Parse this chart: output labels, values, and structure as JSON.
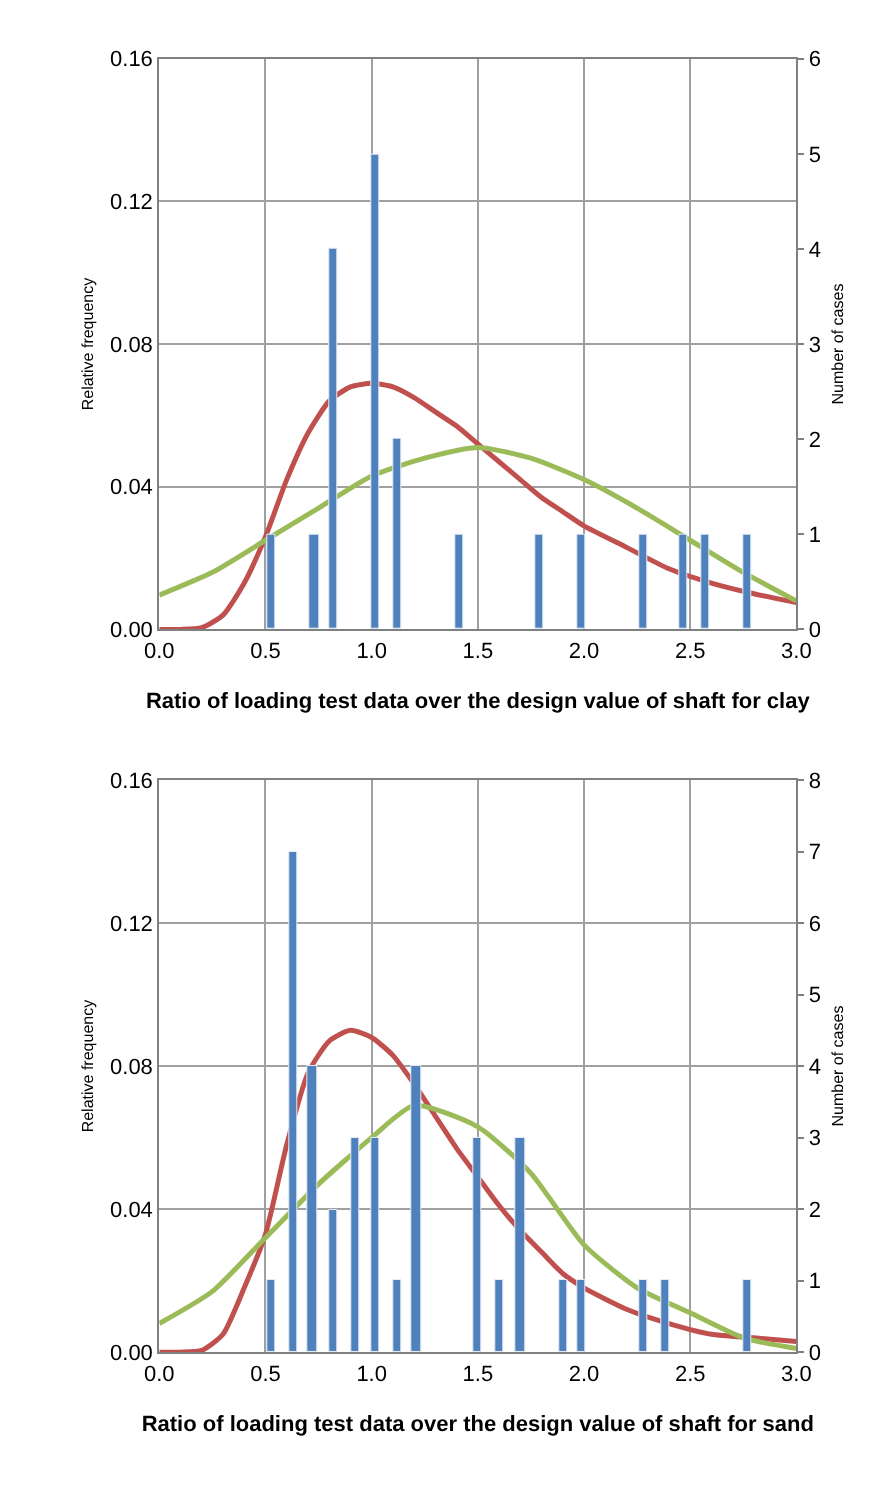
{
  "chart_data": [
    {
      "type": "bar",
      "xlabel": "Ratio of loading test data over the design value of shaft for clay",
      "ylabel": "Relative frequency",
      "y2label": "Number of cases",
      "xlim": [
        0.0,
        3.0
      ],
      "xticks": [
        {
          "value": 0,
          "label": "0.0"
        },
        {
          "value": 0.5,
          "label": "0.5"
        },
        {
          "value": 1,
          "label": "1.0"
        },
        {
          "value": 1.5,
          "label": "1.5"
        },
        {
          "value": 2,
          "label": "2.0"
        },
        {
          "value": 2.5,
          "label": "2.5"
        },
        {
          "value": 3,
          "label": "3.0"
        }
      ],
      "ylim": [
        0,
        0.16
      ],
      "yticks": [
        {
          "value": 0,
          "label": "0.00"
        },
        {
          "value": 0.04,
          "label": "0.04"
        },
        {
          "value": 0.08,
          "label": "0.08"
        },
        {
          "value": 0.12,
          "label": "0.12"
        },
        {
          "value": 0.16,
          "label": "0.16"
        }
      ],
      "y2lim": [
        0,
        6
      ],
      "y2ticks": [
        0,
        1,
        2,
        3,
        4,
        5,
        6
      ],
      "grid": true,
      "series": [
        {
          "axis": "y2",
          "color": "#4f81bd",
          "x": [
            0.53,
            0.73,
            0.82,
            1.02,
            1.12,
            1.41,
            1.79,
            1.99,
            2.28,
            2.47,
            2.57,
            2.77
          ],
          "values": [
            1,
            1,
            4,
            5,
            2,
            1,
            1,
            1,
            1,
            1,
            1,
            1
          ]
        },
        {
          "type": "line",
          "color": "#c0504d",
          "x": [
            0,
            0.1,
            0.2,
            0.3,
            0.4,
            0.5,
            0.6,
            0.7,
            0.8,
            0.9,
            1.0,
            1.1,
            1.2,
            1.3,
            1.4,
            1.5,
            1.6,
            1.7,
            1.8,
            1.9,
            2.0,
            2.2,
            2.4,
            2.6,
            2.8,
            3.0
          ],
          "values": [
            0,
            0,
            0.0005,
            0.004,
            0.013,
            0.026,
            0.042,
            0.055,
            0.064,
            0.068,
            0.069,
            0.068,
            0.065,
            0.061,
            0.057,
            0.052,
            0.047,
            0.042,
            0.037,
            0.033,
            0.029,
            0.023,
            0.017,
            0.013,
            0.01,
            0.0075
          ]
        },
        {
          "type": "line",
          "color": "#9bbb59",
          "x": [
            0,
            0.25,
            0.5,
            0.75,
            1.0,
            1.25,
            1.5,
            1.75,
            2.0,
            2.25,
            2.5,
            2.75,
            3.0
          ],
          "values": [
            0.0096,
            0.016,
            0.025,
            0.034,
            0.043,
            0.048,
            0.051,
            0.048,
            0.042,
            0.034,
            0.025,
            0.016,
            0.008
          ]
        }
      ]
    },
    {
      "type": "bar",
      "xlabel": "Ratio of loading test data over the design value of shaft for sand",
      "ylabel": "Relative frequency",
      "y2label": "Number of cases",
      "xlim": [
        0.0,
        3.0
      ],
      "xticks": [
        {
          "value": 0,
          "label": "0.0"
        },
        {
          "value": 0.5,
          "label": "0.5"
        },
        {
          "value": 1,
          "label": "1.0"
        },
        {
          "value": 1.5,
          "label": "1.5"
        },
        {
          "value": 2,
          "label": "2.0"
        },
        {
          "value": 2.5,
          "label": "2.5"
        },
        {
          "value": 3,
          "label": "3.0"
        }
      ],
      "ylim": [
        0,
        0.16
      ],
      "yticks": [
        {
          "value": 0,
          "label": "0.00"
        },
        {
          "value": 0.04,
          "label": "0.04"
        },
        {
          "value": 0.08,
          "label": "0.08"
        },
        {
          "value": 0.12,
          "label": "0.12"
        },
        {
          "value": 0.16,
          "label": "0.16"
        }
      ],
      "y2lim": [
        0,
        8
      ],
      "y2ticks": [
        0,
        1,
        2,
        3,
        4,
        5,
        6,
        7,
        8
      ],
      "grid": true,
      "series": [
        {
          "axis": "y2",
          "color": "#4f81bd",
          "x": [
            0.53,
            0.63,
            0.72,
            0.82,
            0.92,
            1.02,
            1.12,
            1.21,
            1.5,
            1.6,
            1.7,
            1.9,
            1.99,
            2.28,
            2.38,
            2.77
          ],
          "values": [
            1,
            7,
            4,
            2,
            3,
            3,
            1,
            4,
            3,
            1,
            3,
            1,
            1,
            1,
            1,
            1
          ]
        },
        {
          "type": "line",
          "color": "#c0504d",
          "x": [
            0,
            0.1,
            0.2,
            0.3,
            0.4,
            0.5,
            0.6,
            0.7,
            0.8,
            0.9,
            1.0,
            1.1,
            1.2,
            1.3,
            1.4,
            1.5,
            1.6,
            1.7,
            1.8,
            1.9,
            2.0,
            2.2,
            2.4,
            2.6,
            2.8,
            3.0
          ],
          "values": [
            0,
            0,
            0.0005,
            0.005,
            0.018,
            0.033,
            0.058,
            0.078,
            0.087,
            0.09,
            0.088,
            0.083,
            0.075,
            0.066,
            0.057,
            0.049,
            0.041,
            0.034,
            0.028,
            0.022,
            0.018,
            0.012,
            0.008,
            0.005,
            0.004,
            0.003
          ]
        },
        {
          "type": "line",
          "color": "#9bbb59",
          "x": [
            0,
            0.25,
            0.5,
            0.75,
            1.0,
            1.2,
            1.5,
            1.75,
            2.0,
            2.25,
            2.5,
            2.75,
            3.0
          ],
          "values": [
            0.008,
            0.017,
            0.032,
            0.047,
            0.06,
            0.069,
            0.063,
            0.05,
            0.03,
            0.018,
            0.011,
            0.004,
            0.001
          ]
        }
      ]
    }
  ]
}
